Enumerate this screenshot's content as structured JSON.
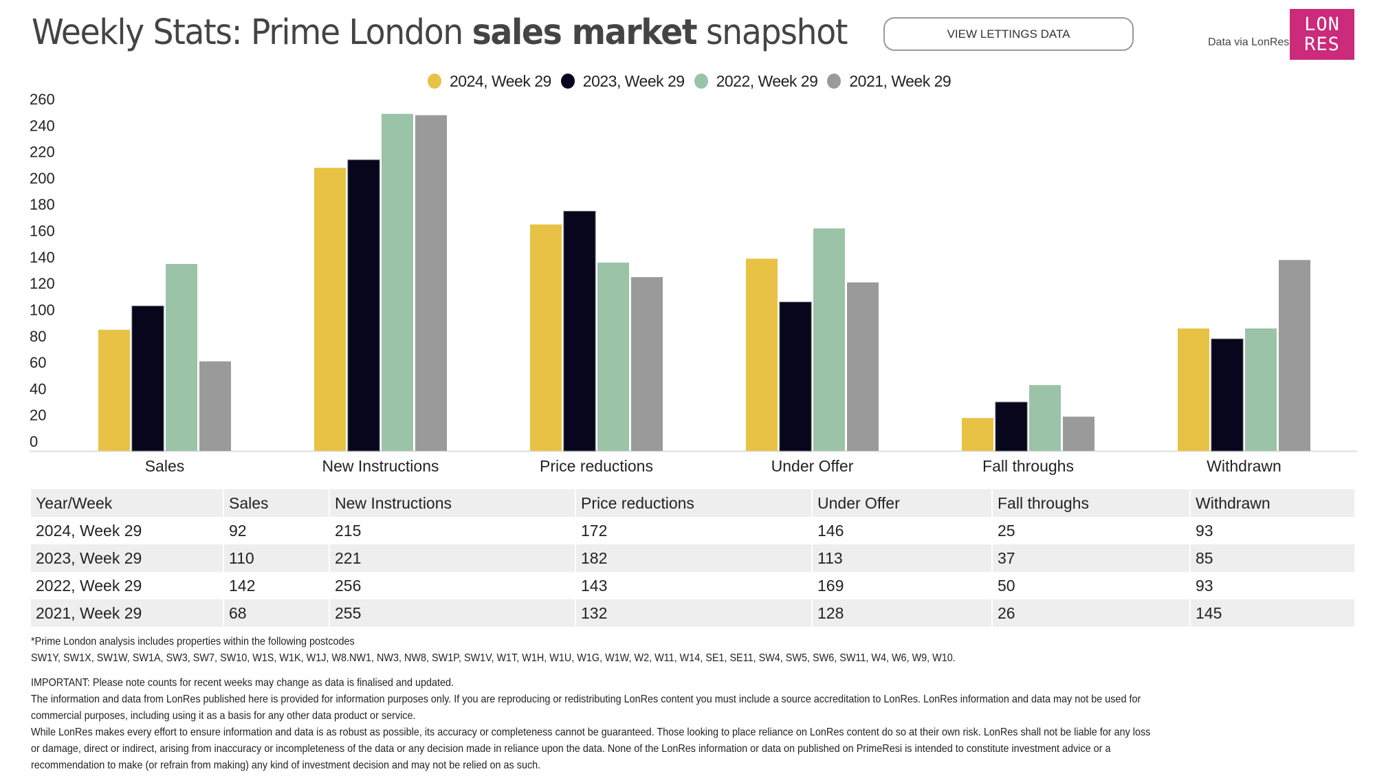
{
  "header": {
    "title_prefix": "Weekly Stats: Prime London ",
    "title_bold": "sales market",
    "title_suffix": " snapshot",
    "lettings_button": "VIEW LETTINGS DATA",
    "data_via": "Data via LonRes",
    "logo_line1": "LON",
    "logo_line2": "RES",
    "logo_color": "#cc2a7a"
  },
  "chart_data": {
    "type": "bar",
    "title": "",
    "xlabel": "",
    "ylabel": "",
    "ylim": [
      0,
      260
    ],
    "yticks": [
      "0",
      "20",
      "40",
      "60",
      "80",
      "100",
      "120",
      "140",
      "160",
      "180",
      "200",
      "220",
      "240",
      "260"
    ],
    "categories": [
      "Sales",
      "New Instructions",
      "Price reductions",
      "Under Offer",
      "Fall throughs",
      "Withdrawn"
    ],
    "legend_position": "top-center",
    "grid": false,
    "series": [
      {
        "name": "2024, Week 29",
        "color": "#e8c244",
        "values": [
          92,
          215,
          172,
          146,
          25,
          93
        ]
      },
      {
        "name": "2023, Week 29",
        "color": "#07061d",
        "values": [
          110,
          221,
          182,
          113,
          37,
          85
        ]
      },
      {
        "name": "2022, Week 29",
        "color": "#9bc3a7",
        "values": [
          142,
          256,
          143,
          169,
          50,
          93
        ]
      },
      {
        "name": "2021, Week 29",
        "color": "#9a9a9a",
        "values": [
          68,
          255,
          132,
          128,
          26,
          145
        ]
      }
    ]
  },
  "table": {
    "headers": [
      "Year/Week",
      "Sales",
      "New Instructions",
      "Price reductions",
      "Under Offer",
      "Fall throughs",
      "Withdrawn"
    ],
    "rows": [
      [
        "2024, Week 29",
        "92",
        "215",
        "172",
        "146",
        "25",
        "93"
      ],
      [
        "2023, Week 29",
        "110",
        "221",
        "182",
        "113",
        "37",
        "85"
      ],
      [
        "2022, Week 29",
        "142",
        "256",
        "143",
        "169",
        "50",
        "93"
      ],
      [
        "2021, Week 29",
        "68",
        "255",
        "132",
        "128",
        "26",
        "145"
      ]
    ]
  },
  "notes": {
    "postcodes_intro": "*Prime London analysis includes properties within the following postcodes",
    "postcodes": "SW1Y, SW1X, SW1W, SW1A, SW3, SW7, SW10, W1S, W1K, W1J, W8.NW1, NW3, NW8, SW1P, SW1V, W1T, W1H, W1U, W1G, W1W, W2, W11, W14, SE1, SE11, SW4, SW5, SW6, SW11, W4, W6, W9, W10.",
    "important": "IMPORTANT: Please note counts for recent weeks may change as data is finalised and updated.",
    "disclaimer_1a": "The information and data from LonRes published here is provided for information purposes only. If you are reproducing or redistributing LonRes content you must include a source accreditation to LonRes. LonRes information and data may not be used for",
    "disclaimer_1b": "commercial purposes, including using it as a basis for any other data product or service.",
    "disclaimer_2a": "While LonRes makes every effort to ensure information and data is as robust as possible, its accuracy or completeness cannot be guaranteed. Those looking to place reliance on LonRes content do so at their own risk. LonRes shall not be liable for any loss",
    "disclaimer_2b": "or damage, direct or indirect, arising from inaccuracy or incompleteness of the data or any decision made in reliance upon the data. None of the LonRes information or data on published on PrimeResi is intended to constitute investment advice or a",
    "disclaimer_2c": "recommendation to make (or refrain from making) any kind of investment decision and may not be relied on as such."
  }
}
